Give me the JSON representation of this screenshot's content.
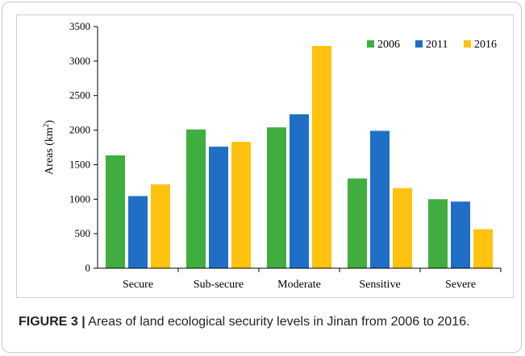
{
  "caption": {
    "label": "FIGURE 3 |",
    "text": " Areas of land ecological security levels in Jinan from 2006 to 2016."
  },
  "colors": {
    "2006": "#3fae3f",
    "2011": "#1f6fc6",
    "2016": "#ffc20e"
  },
  "chart_data": {
    "type": "bar",
    "title": "",
    "xlabel": "",
    "ylabel": "Areas (km²)",
    "ylabel_base": "Areas (km",
    "ylabel_sup": "2",
    "ylabel_end": ")",
    "ylim": [
      0,
      3500
    ],
    "yticks": [
      "0",
      "500",
      "1000",
      "1500",
      "2000",
      "2500",
      "3000",
      "3500"
    ],
    "grid": false,
    "legend_position": "top-right",
    "categories": [
      "Secure",
      "Sub-secure",
      "Moderate",
      "Sensitive",
      "Severe"
    ],
    "series": [
      {
        "name": "2006",
        "values": [
          1635,
          2010,
          2040,
          1300,
          1000
        ]
      },
      {
        "name": "2011",
        "values": [
          1045,
          1760,
          2230,
          1990,
          965
        ]
      },
      {
        "name": "2016",
        "values": [
          1215,
          1830,
          3220,
          1160,
          565
        ]
      }
    ]
  }
}
